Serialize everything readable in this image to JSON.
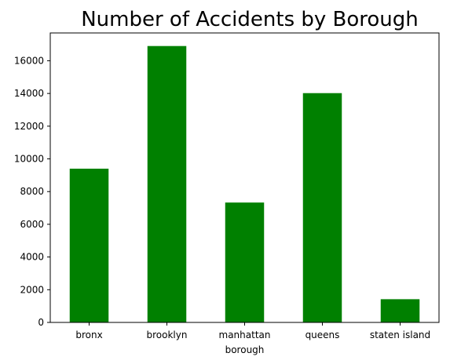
{
  "chart_data": {
    "type": "bar",
    "title": "Number of Accidents by Borough",
    "xlabel": "borough",
    "ylabel": "",
    "categories": [
      "bronx",
      "brooklyn",
      "manhattan",
      "queens",
      "staten island"
    ],
    "values": [
      9400,
      16900,
      7330,
      14020,
      1420
    ],
    "ylim": [
      0,
      17700
    ],
    "yticks": [
      0,
      2000,
      4000,
      6000,
      8000,
      10000,
      12000,
      14000,
      16000
    ],
    "bar_color": "#008000",
    "grid": false,
    "legend": "none"
  }
}
